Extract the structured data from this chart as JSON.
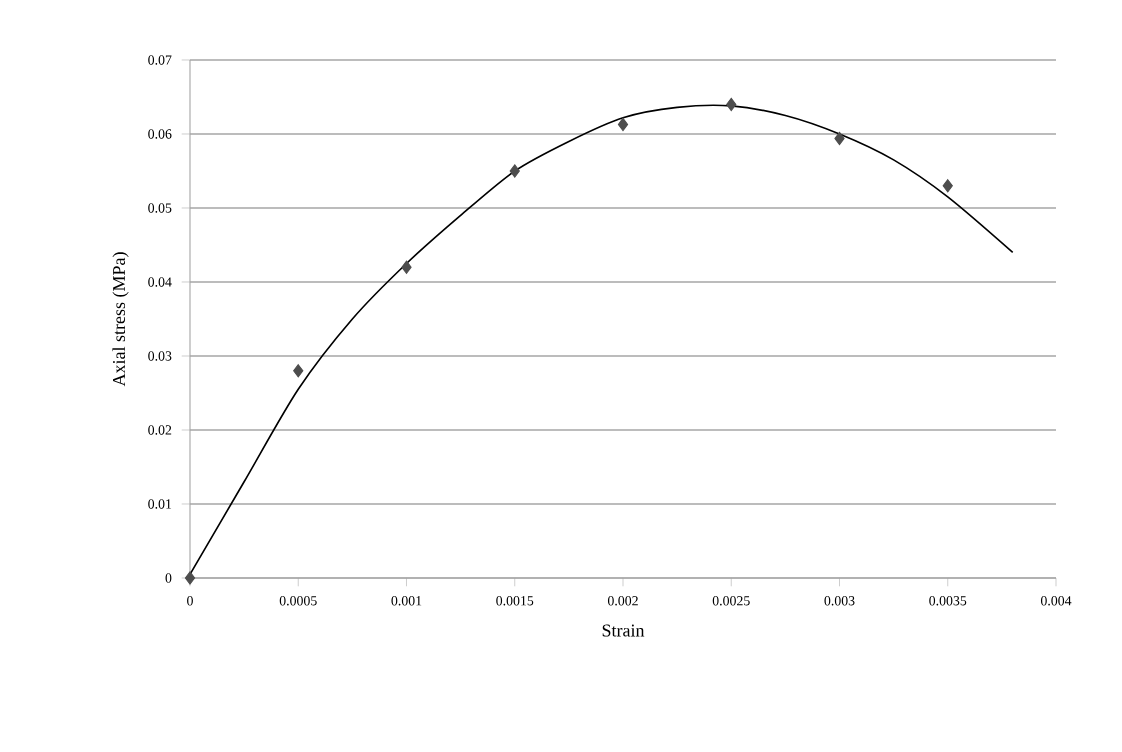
{
  "chart_data": {
    "type": "scatter",
    "xlabel": "Strain",
    "ylabel": "Axial stress (MPa)",
    "xlim": [
      0,
      0.004
    ],
    "xticks": [
      0,
      0.0005,
      0.001,
      0.0015,
      0.002,
      0.0025,
      0.003,
      0.0035,
      0.004
    ],
    "ylim": [
      0,
      0.07
    ],
    "yticks": [
      0,
      0.01,
      0.02,
      0.03,
      0.04,
      0.05,
      0.06,
      0.07
    ],
    "grid": "y",
    "legend": false,
    "series": [
      {
        "marker": "diamond",
        "color": "#4d4d4d",
        "x": [
          0,
          0.0005,
          0.001,
          0.0015,
          0.002,
          0.0025,
          0.003,
          0.0035
        ],
        "values": [
          0,
          0.028,
          0.042,
          0.055,
          0.0613,
          0.064,
          0.0594,
          0.053
        ]
      },
      {
        "type": "line",
        "marker": "none",
        "line_style": "solid",
        "color": "#000000",
        "x": [
          0,
          0.00025,
          0.0005,
          0.00075,
          0.001,
          0.00125,
          0.0015,
          0.00175,
          0.002,
          0.00225,
          0.0025,
          0.00275,
          0.003,
          0.00325,
          0.0035,
          0.0038
        ],
        "values": [
          0.0005,
          0.013,
          0.0255,
          0.035,
          0.0425,
          0.049,
          0.055,
          0.059,
          0.0622,
          0.0636,
          0.0638,
          0.0625,
          0.06,
          0.0565,
          0.0515,
          0.044
        ]
      }
    ]
  }
}
